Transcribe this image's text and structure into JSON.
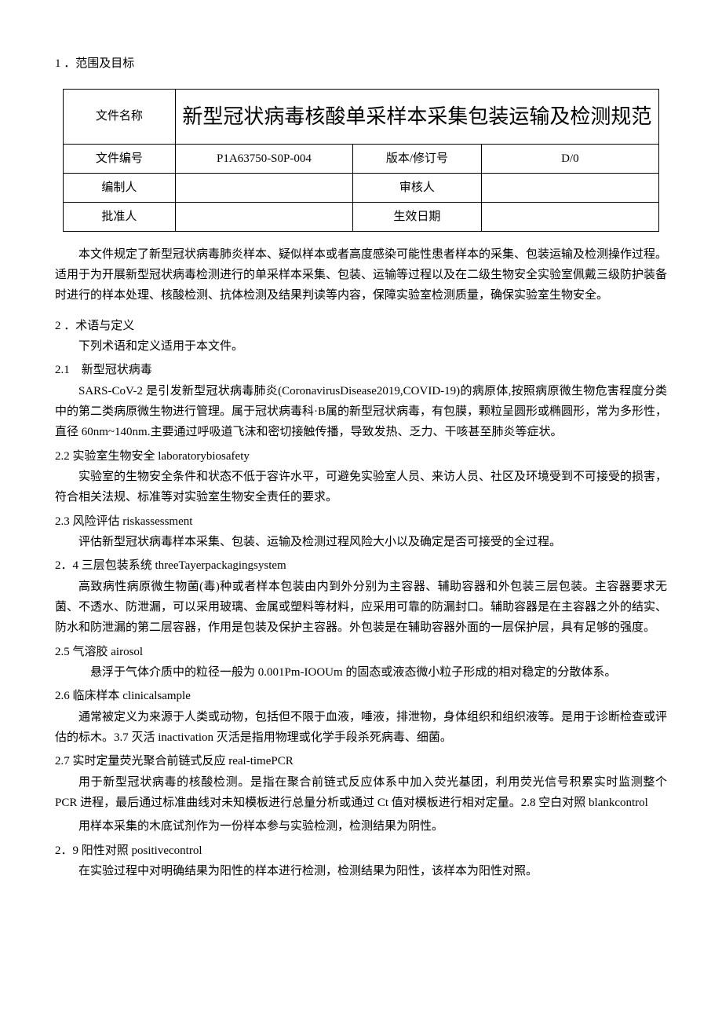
{
  "section1": {
    "heading": "1 ．范围及目标"
  },
  "metaTable": {
    "row1_label": "文件名称",
    "row1_value": "新型冠状病毒核酸单采样本采集包装运输及检测规范",
    "row2_c1": "文件编号",
    "row2_c2": "P1A63750-S0P-004",
    "row2_c3": "版本/修订号",
    "row2_c4": "D/0",
    "row3_c1": "编制人",
    "row3_c2": "",
    "row3_c3": "审核人",
    "row3_c4": "",
    "row4_c1": "批准人",
    "row4_c2": "",
    "row4_c3": "生效日期",
    "row4_c4": ""
  },
  "intro": "本文件规定了新型冠状病毒肺炎样本、疑似样本或者高度感染可能性患者样本的采集、包装运输及检测操作过程。适用于为开展新型冠状病毒检测进行的单采样本采集、包装、运输等过程以及在二级生物安全实验室佩戴三级防护装备时进行的样本处理、核酸检测、抗体检测及结果判读等内容，保障实验室检测质量，确保实验室生物安全。",
  "section2": {
    "heading": "2 ．术语与定义",
    "lead": "下列术语和定义适用于本文件。",
    "s21_h": "2.1　新型冠状病毒",
    "s21_p": "SARS-CoV-2 是引发新型冠状病毒肺炎(CoronavirusDisease2019,COVID-19)的病原体,按照病原微生物危害程度分类中的第二类病原微生物进行管理。属于冠状病毒科·B属的新型冠状病毒，有包膜，颗粒呈圆形或椭圆形，常为多形性，直径 60nm~140nm.主要通过呼吸道飞沫和密切接触传播，导致发热、乏力、干咳甚至肺炎等症状。",
    "s22_h": "2.2 实验室生物安全 laboratorybiosafety",
    "s22_p": "实验室的生物安全条件和状态不低于容许水平，可避免实验室人员、来访人员、社区及环境受到不可接受的损害，符合相关法规、标准等对实验室生物安全责任的要求。",
    "s23_h": "2.3 风险评估 riskassessment",
    "s23_p": "评估新型冠状病毒样本采集、包装、运输及检测过程风险大小以及确定是否可接受的全过程。",
    "s24_h": "2．4 三层包装系统 threeTayerpackagingsystem",
    "s24_p": "高致病性病原微生物菌(毒)种或者样本包装由内到外分别为主容器、辅助容器和外包装三层包装。主容器要求无菌、不透水、防泄漏，可以采用玻璃、金属或塑料等材料，应采用可靠的防漏封口。辅助容器是在主容器之外的结实、防水和防泄漏的第二层容器，作用是包装及保护主容器。外包装是在辅助容器外面的一层保护层，具有足够的强度。",
    "s25_h": "2.5 气溶胶 airosol",
    "s25_p": "悬浮于气体介质中的粒径一般为 0.001Pm-IOOUm 的固态或液态微小粒子形成的相对稳定的分散体系。",
    "s26_h": "2.6 临床样本 clinicalsample",
    "s26_p": "通常被定义为来源于人类或动物，包括但不限于血液，唾液，排泄物，身体组织和组织液等。是用于诊断检查或评估的标木。3.7 灭活 inactivation 灭活是指用物理或化学手段杀死病毒、细菌。",
    "s27_h": "2.7 实时定量荧光聚合前链式反应 real-timePCR",
    "s27_p": "用于新型冠状病毒的核酸检测。是指在聚合前链式反应体系中加入荧光基团，利用荧光信号积累实时监测整个 PCR 进程，最后通过标准曲线对未知模板进行总量分析或通过 Ct 值对模板进行相对定量。2.8 空白对照 blankcontrol",
    "s28_p": "用样本采集的木底试剂作为一份样本参与实验检测，检测结果为阴性。",
    "s29_h": "2．9 阳性对照 positivecontrol",
    "s29_p": "在实验过程中对明确结果为阳性的样本进行检测，检测结果为阳性，该样本为阳性对照。"
  }
}
